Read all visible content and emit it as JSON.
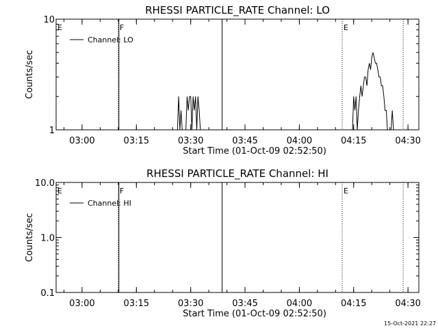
{
  "chart_data": [
    {
      "type": "line",
      "title": "RHESSI PARTICLE_RATE Channel: LO",
      "xlabel": "Start Time (01-Oct-09 02:52:50)",
      "ylabel": "Counts/sec",
      "yscale": "log",
      "ylim": [
        1,
        10
      ],
      "xlim": [
        "02:52:50",
        "04:33:00"
      ],
      "yticks": [
        "1",
        "10"
      ],
      "xticks": [
        "03:00",
        "03:15",
        "03:30",
        "03:45",
        "04:00",
        "04:15",
        "04:30"
      ],
      "legend": "Channel: LO",
      "legend_position": "top-left",
      "markers": [
        {
          "label": "E",
          "time": "02:52:50",
          "style": "dotted"
        },
        {
          "label": "F",
          "time": "03:10:00",
          "style": "dotted"
        },
        {
          "label": "",
          "time": "03:10:10",
          "style": "solid"
        },
        {
          "label": "",
          "time": "03:38:40",
          "style": "solid"
        },
        {
          "label": "E",
          "time": "04:11:50",
          "style": "dotted"
        },
        {
          "label": "",
          "time": "04:28:40",
          "style": "dotted"
        }
      ],
      "series": [
        {
          "name": "Channel: LO",
          "points": [
            [
              "03:26:20",
              1
            ],
            [
              "03:26:40",
              2
            ],
            [
              "03:27:00",
              1
            ],
            [
              "03:27:20",
              1.5
            ],
            [
              "03:27:40",
              1
            ],
            [
              "03:28:40",
              1
            ],
            [
              "03:29:00",
              2
            ],
            [
              "03:29:20",
              1.5
            ],
            [
              "03:29:40",
              2
            ],
            [
              "03:30:00",
              2
            ],
            [
              "03:30:20",
              1
            ],
            [
              "03:30:40",
              2
            ],
            [
              "03:31:00",
              1.5
            ],
            [
              "03:31:20",
              2
            ],
            [
              "03:31:40",
              1
            ],
            [
              "03:32:00",
              2
            ],
            [
              "03:32:20",
              1.5
            ],
            [
              "03:32:40",
              1
            ],
            [
              "04:14:40",
              1
            ],
            [
              "04:15:00",
              2
            ],
            [
              "04:15:20",
              1.5
            ],
            [
              "04:15:40",
              2
            ],
            [
              "04:16:00",
              1
            ],
            [
              "04:16:20",
              1.5
            ],
            [
              "04:16:40",
              2
            ],
            [
              "04:17:00",
              2.5
            ],
            [
              "04:17:20",
              2
            ],
            [
              "04:17:40",
              2.5
            ],
            [
              "04:18:00",
              3
            ],
            [
              "04:18:20",
              3
            ],
            [
              "04:18:40",
              2.5
            ],
            [
              "04:19:00",
              3.5
            ],
            [
              "04:19:20",
              4
            ],
            [
              "04:19:40",
              3.5
            ],
            [
              "04:20:00",
              4.5
            ],
            [
              "04:20:20",
              5
            ],
            [
              "04:20:40",
              4.5
            ],
            [
              "04:21:00",
              4
            ],
            [
              "04:21:20",
              4
            ],
            [
              "04:21:40",
              3.5
            ],
            [
              "04:22:00",
              3
            ],
            [
              "04:22:20",
              3
            ],
            [
              "04:22:40",
              2.5
            ],
            [
              "04:23:00",
              2.5
            ],
            [
              "04:23:20",
              2
            ],
            [
              "04:23:40",
              1.5
            ],
            [
              "04:24:00",
              1.5
            ],
            [
              "04:24:20",
              1
            ],
            [
              "04:25:20",
              1
            ],
            [
              "04:25:40",
              1.5
            ],
            [
              "04:26:00",
              1
            ]
          ]
        }
      ]
    },
    {
      "type": "line",
      "title": "RHESSI PARTICLE_RATE Channel: HI",
      "xlabel": "Start Time (01-Oct-09 02:52:50)",
      "ylabel": "Counts/sec",
      "yscale": "log",
      "ylim": [
        0.1,
        10
      ],
      "xlim": [
        "02:52:50",
        "04:33:00"
      ],
      "yticks": [
        "0.1",
        "1.0",
        "10.0"
      ],
      "xticks": [
        "03:00",
        "03:15",
        "03:30",
        "03:45",
        "04:00",
        "04:15",
        "04:30"
      ],
      "legend": "Channel: HI",
      "legend_position": "top-left",
      "markers": [
        {
          "label": "E",
          "time": "02:52:50",
          "style": "dotted"
        },
        {
          "label": "F",
          "time": "03:10:00",
          "style": "dotted"
        },
        {
          "label": "",
          "time": "03:10:10",
          "style": "solid"
        },
        {
          "label": "",
          "time": "03:38:40",
          "style": "solid"
        },
        {
          "label": "E",
          "time": "04:11:50",
          "style": "dotted"
        },
        {
          "label": "",
          "time": "04:28:40",
          "style": "dotted"
        }
      ],
      "series": [
        {
          "name": "Channel: HI",
          "points": []
        }
      ]
    }
  ],
  "footer": {
    "timestamp": "15-Oct-2021 22:27"
  }
}
